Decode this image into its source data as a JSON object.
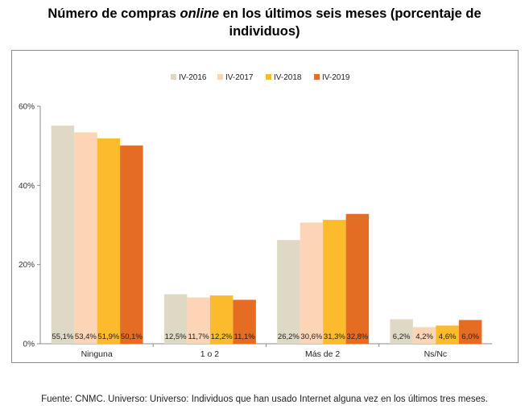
{
  "title": {
    "part1": "Número de compras ",
    "part_italic": "online",
    "part2": " en los últimos seis meses (porcentaje de",
    "line2": "individuos)"
  },
  "source": "Fuente: CNMC. Universo: Universo: Individuos que han usado Internet alguna vez en los últimos tres meses.",
  "chart_data": {
    "type": "bar",
    "title": "Número de compras online en los últimos seis meses (porcentaje de individuos)",
    "categories": [
      "Ninguna",
      "1 o 2",
      "Más de 2",
      "Ns/Nc"
    ],
    "series": [
      {
        "name": "IV-2016",
        "color": "#ddd9c4",
        "values": [
          55.1,
          12.5,
          26.2,
          6.2
        ],
        "labels": [
          "55,1%",
          "12,5%",
          "26,2%",
          "6,2%"
        ]
      },
      {
        "name": "IV-2017",
        "color": "#fbd5b5",
        "values": [
          53.4,
          11.7,
          30.6,
          4.2
        ],
        "labels": [
          "53,4%",
          "11,7%",
          "30,6%",
          "4,2%"
        ]
      },
      {
        "name": "IV-2018",
        "color": "#fbbb2c",
        "values": [
          51.9,
          12.2,
          31.3,
          4.6
        ],
        "labels": [
          "51,9%",
          "12,2%",
          "31,3%",
          "4,6%"
        ]
      },
      {
        "name": "IV-2019",
        "color": "#e46c23",
        "values": [
          50.1,
          11.1,
          32.8,
          6.0
        ],
        "labels": [
          "50,1%",
          "11,1%",
          "32,8%",
          "6,0%"
        ]
      }
    ],
    "ylim": [
      0,
      60
    ],
    "yticks": [
      "0%",
      "20%",
      "40%",
      "60%"
    ],
    "ytick_values": [
      0,
      20,
      40,
      60
    ],
    "grid": false,
    "legend_position": "top-center"
  }
}
